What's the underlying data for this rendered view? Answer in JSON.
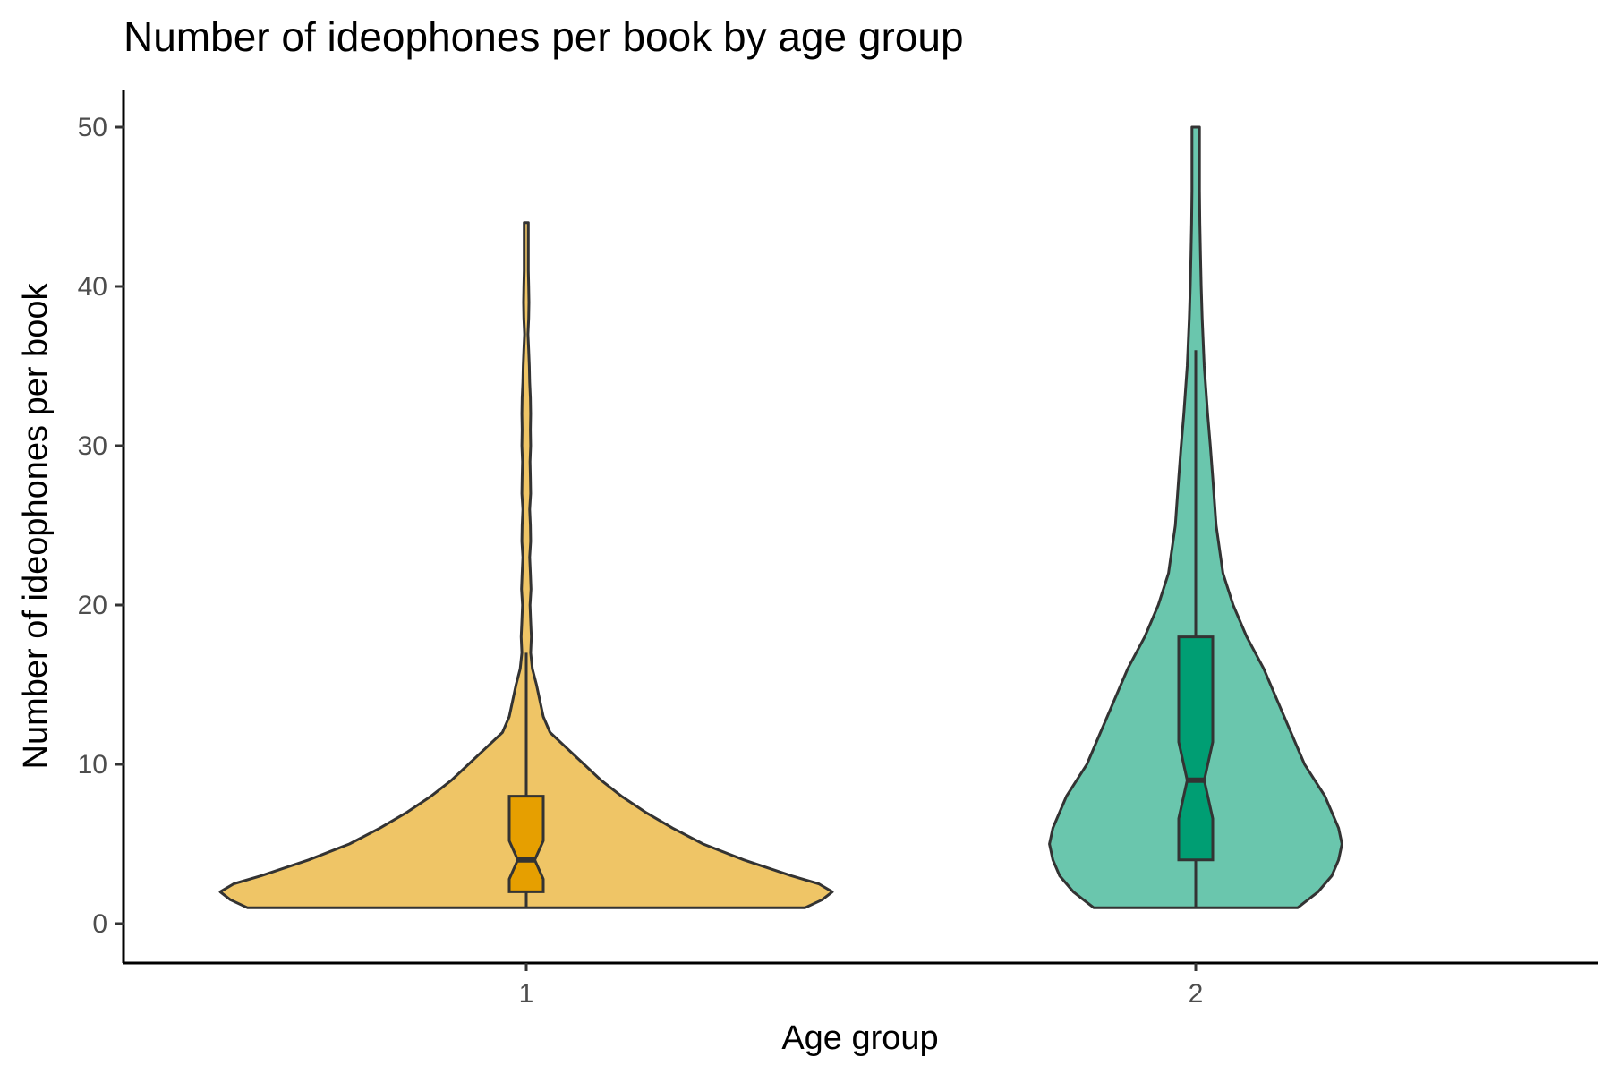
{
  "chart_data": {
    "type": "violin",
    "title": "Number of ideophones per book by age group",
    "xlabel": "Age group",
    "ylabel": "Number of ideophones per book",
    "categories": [
      "1",
      "2"
    ],
    "ylim": [
      -2.5,
      52.5
    ],
    "yticks": [
      0,
      10,
      20,
      30,
      40,
      50
    ],
    "grid": false,
    "legend": "none",
    "groups": [
      {
        "category": "1",
        "violin_color": "#EFC566",
        "box_color": "#E69F00",
        "min": 1,
        "q1": 2,
        "median": 4,
        "q3": 8,
        "whisker_high": 17,
        "max": 44,
        "notch_low": 2.8,
        "notch_high": 5.2,
        "density": [
          [
            1,
            0.82
          ],
          [
            1.5,
            0.87
          ],
          [
            2,
            0.9
          ],
          [
            2.5,
            0.86
          ],
          [
            3,
            0.78
          ],
          [
            4,
            0.64
          ],
          [
            5,
            0.52
          ],
          [
            6,
            0.43
          ],
          [
            7,
            0.35
          ],
          [
            8,
            0.28
          ],
          [
            9,
            0.22
          ],
          [
            10,
            0.17
          ],
          [
            11,
            0.12
          ],
          [
            12,
            0.07
          ],
          [
            13,
            0.05
          ],
          [
            14,
            0.04
          ],
          [
            15,
            0.03
          ],
          [
            16,
            0.018
          ],
          [
            17,
            0.013
          ],
          [
            18,
            0.015
          ],
          [
            19,
            0.013
          ],
          [
            20,
            0.011
          ],
          [
            21,
            0.014
          ],
          [
            22,
            0.012
          ],
          [
            23,
            0.01
          ],
          [
            24,
            0.013
          ],
          [
            25,
            0.012
          ],
          [
            26,
            0.01
          ],
          [
            27,
            0.013
          ],
          [
            28,
            0.012
          ],
          [
            29,
            0.011
          ],
          [
            30,
            0.013
          ],
          [
            31,
            0.012
          ],
          [
            32,
            0.013
          ],
          [
            33,
            0.012
          ],
          [
            34,
            0.01
          ],
          [
            35,
            0.009
          ],
          [
            36,
            0.007
          ],
          [
            37,
            0.005
          ],
          [
            38,
            0.007
          ],
          [
            39,
            0.008
          ],
          [
            40,
            0.007
          ],
          [
            41,
            0.006
          ],
          [
            42,
            0.006
          ],
          [
            43,
            0.006
          ],
          [
            44,
            0.006
          ]
        ]
      },
      {
        "category": "2",
        "violin_color": "#6AC6AD",
        "box_color": "#009E73",
        "min": 1,
        "q1": 4,
        "median": 9,
        "q3": 18,
        "whisker_high": 36,
        "max": 50,
        "notch_low": 6.6,
        "notch_high": 11.4,
        "density": [
          [
            1,
            0.3
          ],
          [
            2,
            0.36
          ],
          [
            3,
            0.4
          ],
          [
            4,
            0.42
          ],
          [
            5,
            0.43
          ],
          [
            6,
            0.42
          ],
          [
            7,
            0.4
          ],
          [
            8,
            0.38
          ],
          [
            9,
            0.35
          ],
          [
            10,
            0.32
          ],
          [
            12,
            0.28
          ],
          [
            14,
            0.24
          ],
          [
            16,
            0.2
          ],
          [
            18,
            0.15
          ],
          [
            20,
            0.11
          ],
          [
            22,
            0.08
          ],
          [
            25,
            0.06
          ],
          [
            28,
            0.05
          ],
          [
            30,
            0.043
          ],
          [
            32,
            0.035
          ],
          [
            35,
            0.025
          ],
          [
            38,
            0.019
          ],
          [
            40,
            0.016
          ],
          [
            42,
            0.014
          ],
          [
            44,
            0.012
          ],
          [
            46,
            0.011
          ],
          [
            48,
            0.011
          ],
          [
            50,
            0.011
          ]
        ]
      }
    ]
  }
}
